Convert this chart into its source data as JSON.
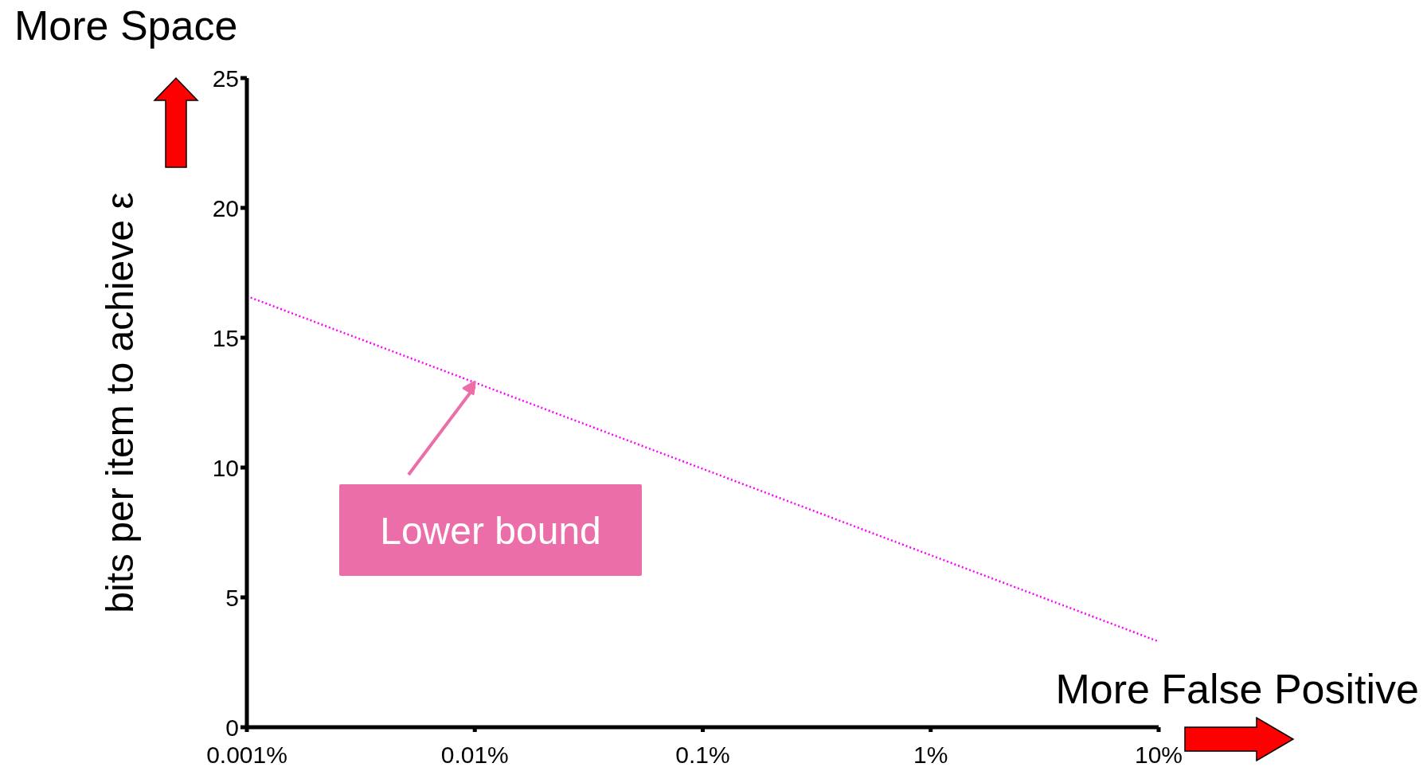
{
  "chart_data": {
    "type": "line",
    "x": [
      0.001,
      10
    ],
    "series": [
      {
        "color": "#ff00ff",
        "values": [
          16.6,
          3.3
        ]
      }
    ],
    "xlim": [
      0.001,
      10
    ],
    "xticks": [
      {
        "value": 0.001,
        "label": "0.001%"
      },
      {
        "value": 0.01,
        "label": "0.01%"
      },
      {
        "value": 0.1,
        "label": "0.1%"
      },
      {
        "value": 1,
        "label": "1%"
      },
      {
        "value": 10,
        "label": "10%"
      }
    ],
    "ylim": [
      0,
      25
    ],
    "yticks": [
      0,
      5,
      10,
      15,
      20,
      25
    ],
    "log": "x",
    "ylabel": "bits per item to achieve ε",
    "line_style": "dotted",
    "marker": "none",
    "annotations": [
      "More Space",
      "More False Positive",
      {
        "text": "Lower bound",
        "x": 0.01,
        "y": 13.3
      }
    ]
  }
}
